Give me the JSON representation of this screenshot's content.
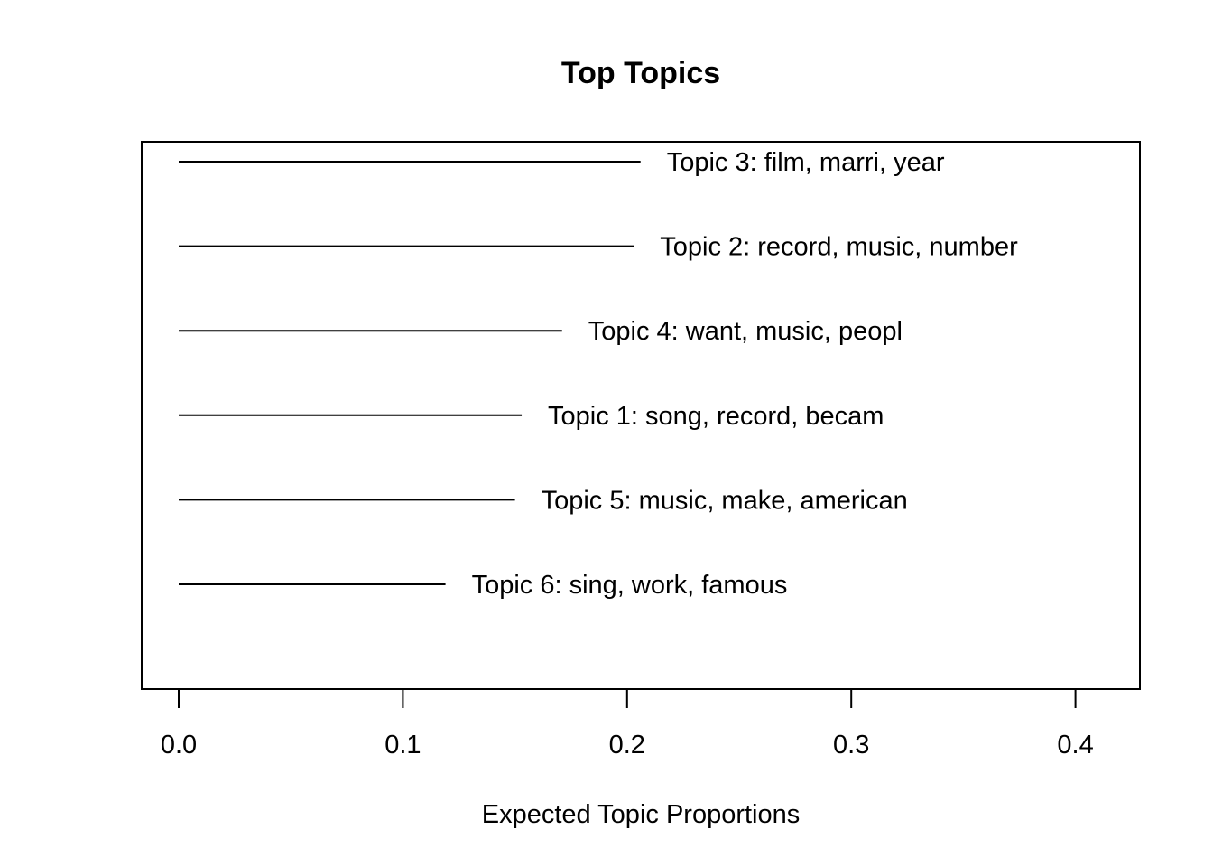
{
  "chart_data": {
    "type": "bar",
    "title": "Top Topics",
    "xlabel": "Expected Topic Proportions",
    "ylabel": "",
    "orientation": "horizontal",
    "xlim": [
      0.0,
      0.4
    ],
    "x_ticks": [
      "0.0",
      "0.1",
      "0.2",
      "0.3",
      "0.4"
    ],
    "grid": false,
    "categories": [
      "Topic 3: film, marri, year",
      "Topic 2: record, music, number",
      "Topic 4: want, music, peopl",
      "Topic 1: song, record, becam",
      "Topic 5: music, make, american",
      "Topic 6: sing, work, famous"
    ],
    "values": [
      0.206,
      0.203,
      0.171,
      0.153,
      0.15,
      0.119
    ]
  }
}
